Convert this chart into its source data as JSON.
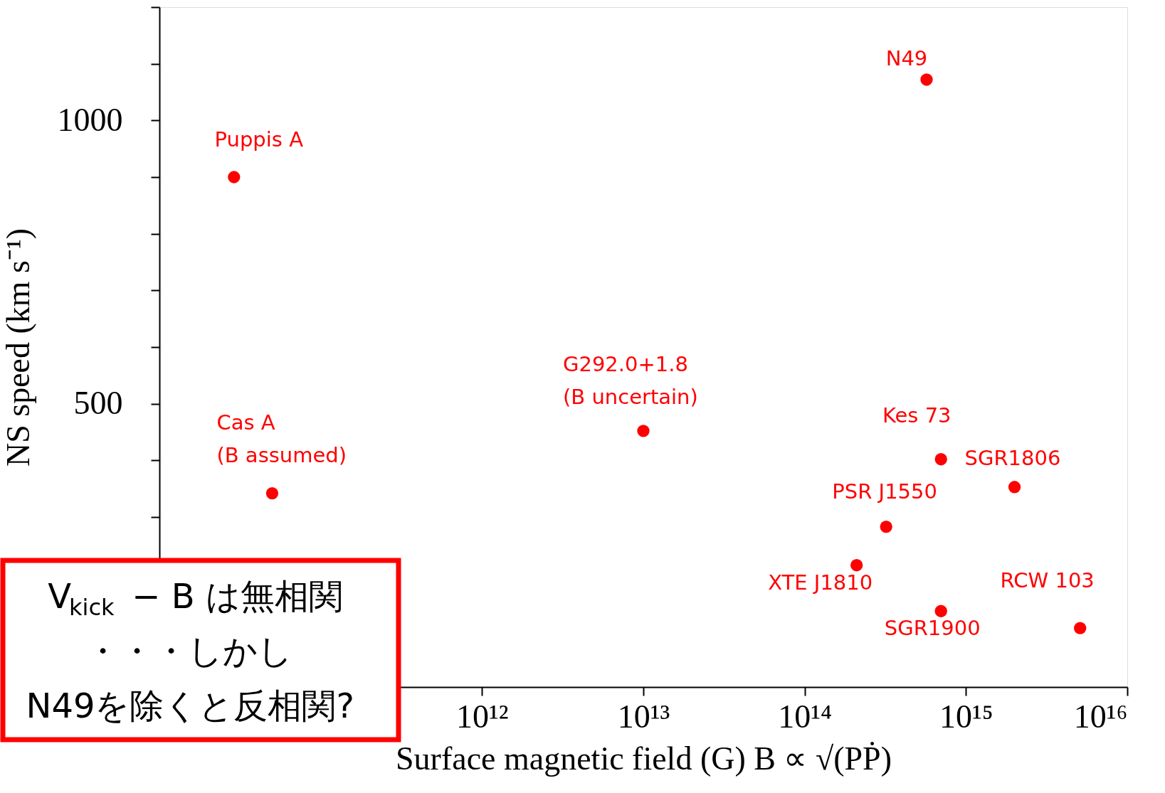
{
  "chart_data": {
    "type": "scatter",
    "xlabel": "Surface magnetic field (G)  B ∝ √(PṖ)",
    "ylabel": "NS speed (km s⁻¹)",
    "x": [
      29000000000.0,
      50000000000.0,
      10000000000000.0,
      570000000000000.0,
      700000000000000.0,
      2000000000000000.0,
      320000000000000.0,
      210000000000000.0,
      700000000000000.0,
      5100000000000000.0
    ],
    "series": [
      {
        "color": "#ff0000",
        "values": [
          900,
          342,
          452,
          1072,
          402,
          353,
          283,
          215,
          134,
          104
        ]
      }
    ],
    "xlim": [
      10000000000.0,
      1e+16
    ],
    "xticks": [
      {
        "value": 10000000000.0,
        "label": null
      },
      {
        "value": 100000000000.0,
        "label": null
      },
      {
        "value": 1000000000000.0,
        "label": "10¹²"
      },
      {
        "value": 10000000000000.0,
        "label": "10¹³"
      },
      {
        "value": 100000000000000.0,
        "label": "10¹⁴"
      },
      {
        "value": 1000000000000000.0,
        "label": "10¹⁵"
      },
      {
        "value": 1e+16,
        "label": "10¹⁶"
      }
    ],
    "ylim": [
      0,
      1200
    ],
    "yticks": [
      {
        "value": 0,
        "label": null
      },
      {
        "value": 100,
        "label": null
      },
      {
        "value": 200,
        "label": null
      },
      {
        "value": 300,
        "label": null
      },
      {
        "value": 400,
        "label": null
      },
      500,
      {
        "value": 600,
        "label": null
      },
      {
        "value": 700,
        "label": null
      },
      {
        "value": 800,
        "label": null
      },
      {
        "value": 900,
        "label": null
      },
      1000,
      {
        "value": 1100,
        "label": null
      },
      {
        "value": 1200,
        "label": null
      }
    ],
    "log": "x",
    "grid": false,
    "legend": false,
    "marker": "circle",
    "annotations": [
      {
        "text": "Puppis A",
        "x": 29000000000.0,
        "y": 900
      },
      {
        "text": "Cas A\n(B assumed)",
        "x": 50000000000.0,
        "y": 342
      },
      {
        "text": "G292.0+1.8\n(B uncertain)",
        "x": 10000000000000.0,
        "y": 452
      },
      {
        "text": "N49",
        "x": 570000000000000.0,
        "y": 1072
      },
      {
        "text": "Kes 73",
        "x": 700000000000000.0,
        "y": 402
      },
      {
        "text": "SGR1806",
        "x": 2000000000000000.0,
        "y": 353
      },
      {
        "text": "PSR J1550",
        "x": 320000000000000.0,
        "y": 283
      },
      {
        "text": "XTE J1810",
        "x": 210000000000000.0,
        "y": 215
      },
      {
        "text": "SGR1900",
        "x": 700000000000000.0,
        "y": 134
      },
      {
        "text": "RCW 103",
        "x": 5100000000000000.0,
        "y": 104
      },
      "V$_{kick}$ − B は無相関",
      "・・・しかし",
      "N49を除くと反相関?"
    ]
  }
}
